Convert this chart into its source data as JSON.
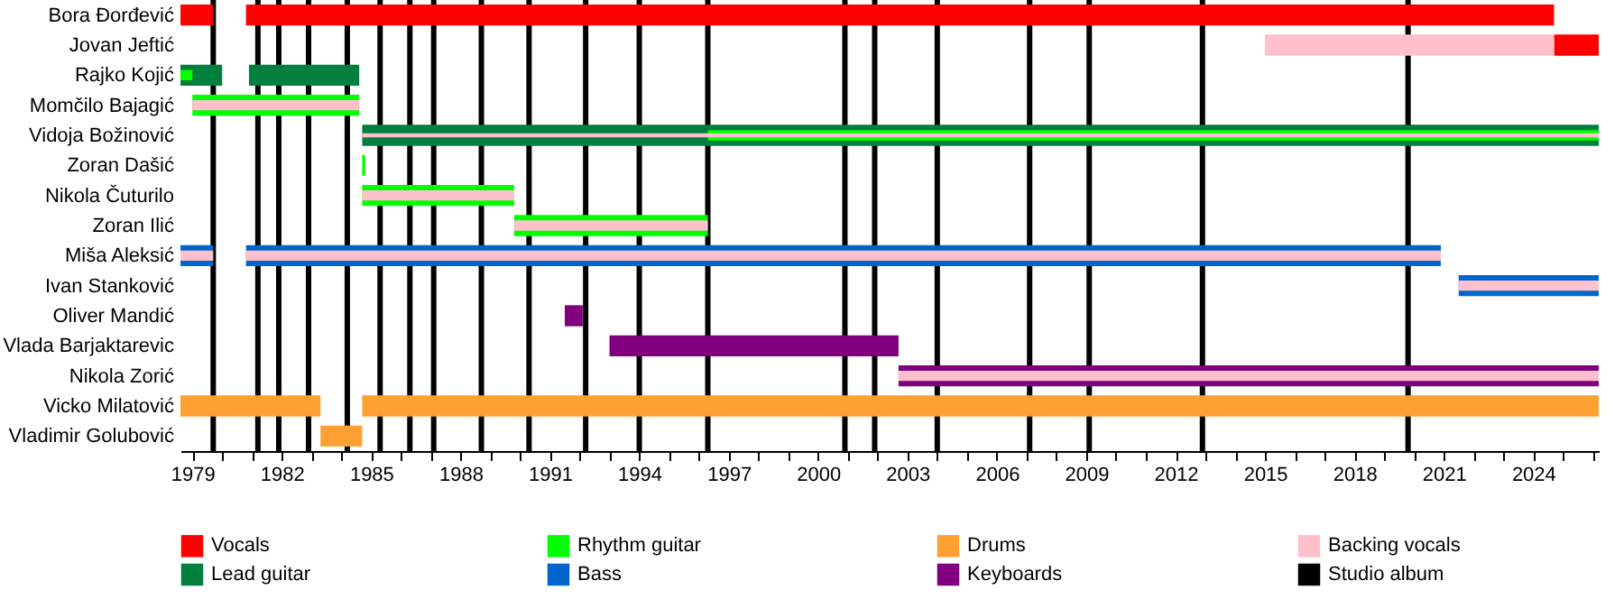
{
  "chart_data": {
    "type": "bar",
    "orientation": "horizontal",
    "legend": "bottom",
    "categories": [
      "Bora Đorđević",
      "Jovan Jeftić",
      "Rajko Kojić",
      "Momčilo Bajagić",
      "Vidoja Božinović",
      "Zoran Dašić",
      "Nikola Čuturilo",
      "Zoran Ilić",
      "Miša Aleksić",
      "Ivan Stanković",
      "Oliver Mandić",
      "Vlada Barjaktarevic",
      "Nikola Zorić",
      "Vicko Milatović",
      "Vladimir Golubović"
    ],
    "series": [
      {
        "name": "Vocals",
        "color": "#ff0000",
        "values": [
          1.1,
          1.5,
          null,
          null,
          null,
          null,
          null,
          null,
          null,
          null,
          null,
          null,
          null,
          null,
          null
        ],
        "base": [
          1978.6,
          2024.7,
          null,
          null,
          null,
          null,
          null,
          null,
          null,
          null,
          null,
          null,
          null,
          null,
          null
        ]
      },
      {
        "color": "#ff0000",
        "values": [
          43.9,
          null,
          null,
          null,
          null,
          null,
          null,
          null,
          null,
          null,
          null,
          null,
          null,
          null,
          null
        ],
        "base": [
          1980.8,
          null,
          null,
          null,
          null,
          null,
          null,
          null,
          null,
          null,
          null,
          null,
          null,
          null,
          null
        ]
      },
      {
        "name": "Lead guitar",
        "color": "#007f3f",
        "values": [
          null,
          null,
          1.4,
          null,
          41.5,
          null,
          null,
          null,
          null,
          null,
          null,
          null,
          null,
          null,
          null
        ],
        "base": [
          null,
          null,
          1978.6,
          null,
          1984.7,
          null,
          null,
          null,
          null,
          null,
          null,
          null,
          null,
          null,
          null
        ]
      },
      {
        "color": "#007f3f",
        "values": [
          null,
          null,
          3.7,
          null,
          null,
          null,
          null,
          null,
          null,
          null,
          null,
          null,
          null,
          null,
          null
        ],
        "base": [
          null,
          null,
          1980.9,
          null,
          null,
          null,
          null,
          null,
          null,
          null,
          null,
          null,
          null,
          null,
          null
        ]
      },
      {
        "name": "Rhythm guitar",
        "color": "#00ff00",
        "values": [
          null,
          null,
          0.4,
          5.6,
          29.9,
          0.1,
          5.1,
          6.5,
          null,
          null,
          null,
          null,
          null,
          null,
          null
        ],
        "base": [
          null,
          null,
          1978.6,
          1979.0,
          1996.3,
          1984.7,
          1984.7,
          1989.8,
          null,
          null,
          null,
          null,
          null,
          null,
          null
        ]
      },
      {
        "name": "Bass",
        "color": "#0066cc",
        "values": [
          null,
          null,
          null,
          null,
          null,
          null,
          null,
          null,
          1.1,
          4.7,
          null,
          null,
          null,
          null,
          null
        ],
        "base": [
          null,
          null,
          null,
          null,
          null,
          null,
          null,
          null,
          1978.6,
          2021.5,
          null,
          null,
          null,
          null,
          null
        ]
      },
      {
        "color": "#0066cc",
        "values": [
          null,
          null,
          null,
          null,
          null,
          null,
          null,
          null,
          40.1,
          null,
          null,
          null,
          null,
          null,
          null
        ],
        "base": [
          null,
          null,
          null,
          null,
          null,
          null,
          null,
          null,
          1980.8,
          null,
          null,
          null,
          null,
          null,
          null
        ]
      },
      {
        "name": "Drums",
        "color": "#ffa033",
        "values": [
          null,
          null,
          null,
          null,
          null,
          null,
          null,
          null,
          null,
          null,
          null,
          null,
          null,
          4.7,
          1.4
        ],
        "base": [
          null,
          null,
          null,
          null,
          null,
          null,
          null,
          null,
          null,
          null,
          null,
          null,
          null,
          1978.6,
          1983.3
        ]
      },
      {
        "color": "#ffa033",
        "values": [
          null,
          null,
          null,
          null,
          null,
          null,
          null,
          null,
          null,
          null,
          null,
          null,
          null,
          41.5,
          null
        ],
        "base": [
          null,
          null,
          null,
          null,
          null,
          null,
          null,
          null,
          null,
          null,
          null,
          null,
          null,
          1984.7,
          null
        ]
      },
      {
        "name": "Keyboards",
        "color": "#800080",
        "values": [
          null,
          null,
          null,
          null,
          null,
          null,
          null,
          null,
          null,
          null,
          0.6,
          9.7,
          23.5,
          null,
          null
        ],
        "base": [
          null,
          null,
          null,
          null,
          null,
          null,
          null,
          null,
          null,
          null,
          1991.5,
          1993.0,
          2002.7,
          null,
          null
        ]
      },
      {
        "name": "Backing vocals",
        "color": "#ffc0cb",
        "values": [
          null,
          9.7,
          null,
          5.6,
          41.5,
          null,
          5.1,
          6.5,
          1.1,
          4.7,
          null,
          null,
          23.5,
          null,
          null
        ],
        "base": [
          null,
          2015.0,
          null,
          1979.0,
          1984.7,
          null,
          1984.7,
          1989.8,
          1978.6,
          2021.5,
          null,
          null,
          2002.7,
          null,
          null
        ]
      },
      {
        "color": "#ffc0cb",
        "values": [
          null,
          null,
          null,
          null,
          null,
          null,
          null,
          null,
          40.1,
          null,
          null,
          null,
          null,
          null,
          null
        ],
        "base": [
          null,
          null,
          null,
          null,
          null,
          null,
          null,
          null,
          1980.8,
          null,
          null,
          null,
          null,
          null,
          null
        ]
      }
    ],
    "xlim": [
      1978.6,
      2026.2
    ],
    "xticks": [
      1979,
      {
        "value": 1980,
        "label": null
      },
      {
        "value": 1981,
        "label": null
      },
      1982,
      {
        "value": 1983,
        "label": null
      },
      {
        "value": 1984,
        "label": null
      },
      1985,
      {
        "value": 1986,
        "label": null
      },
      {
        "value": 1987,
        "label": null
      },
      1988,
      {
        "value": 1989,
        "label": null
      },
      {
        "value": 1990,
        "label": null
      },
      1991,
      {
        "value": 1992,
        "label": null
      },
      {
        "value": 1993,
        "label": null
      },
      1994,
      {
        "value": 1995,
        "label": null
      },
      {
        "value": 1996,
        "label": null
      },
      1997,
      {
        "value": 1998,
        "label": null
      },
      {
        "value": 1999,
        "label": null
      },
      2000,
      {
        "value": 2001,
        "label": null
      },
      {
        "value": 2002,
        "label": null
      },
      2003,
      {
        "value": 2004,
        "label": null
      },
      {
        "value": 2005,
        "label": null
      },
      2006,
      {
        "value": 2007,
        "label": null
      },
      {
        "value": 2008,
        "label": null
      },
      2009,
      {
        "value": 2010,
        "label": null
      },
      {
        "value": 2011,
        "label": null
      },
      2012,
      {
        "value": 2013,
        "label": null
      },
      {
        "value": 2014,
        "label": null
      },
      2015,
      {
        "value": 2016,
        "label": null
      },
      {
        "value": 2017,
        "label": null
      },
      2018,
      {
        "value": 2019,
        "label": null
      },
      {
        "value": 2020,
        "label": null
      },
      2021,
      {
        "value": 2022,
        "label": null
      },
      {
        "value": 2023,
        "label": null
      },
      2024,
      {
        "value": 2025,
        "label": null
      },
      {
        "value": 2026,
        "label": null
      }
    ],
    "ref_lines": [
      {
        "axis": "x",
        "value": 1979.7,
        "label": "Studio album",
        "color": "#000000"
      },
      {
        "axis": "x",
        "value": 1981.2,
        "color": "#000000"
      },
      {
        "axis": "x",
        "value": 1981.9,
        "color": "#000000"
      },
      {
        "axis": "x",
        "value": 1982.9,
        "color": "#000000"
      },
      {
        "axis": "x",
        "value": 1984.2,
        "color": "#000000"
      },
      {
        "axis": "x",
        "value": 1985.3,
        "color": "#000000"
      },
      {
        "axis": "x",
        "value": 1986.3,
        "color": "#000000"
      },
      {
        "axis": "x",
        "value": 1987.1,
        "color": "#000000"
      },
      {
        "axis": "x",
        "value": 1988.7,
        "color": "#000000"
      },
      {
        "axis": "x",
        "value": 1990.3,
        "color": "#000000"
      },
      {
        "axis": "x",
        "value": 1992.2,
        "color": "#000000"
      },
      {
        "axis": "x",
        "value": 1994.0,
        "color": "#000000"
      },
      {
        "axis": "x",
        "value": 1996.3,
        "color": "#000000"
      },
      {
        "axis": "x",
        "value": 2000.9,
        "color": "#000000"
      },
      {
        "axis": "x",
        "value": 2001.9,
        "color": "#000000"
      },
      {
        "axis": "x",
        "value": 2004.0,
        "color": "#000000"
      },
      {
        "axis": "x",
        "value": 2007.1,
        "color": "#000000"
      },
      {
        "axis": "x",
        "value": 2009.1,
        "color": "#000000"
      },
      {
        "axis": "x",
        "value": 2012.9,
        "color": "#000000"
      },
      {
        "axis": "x",
        "value": 2019.8,
        "color": "#000000"
      }
    ]
  }
}
